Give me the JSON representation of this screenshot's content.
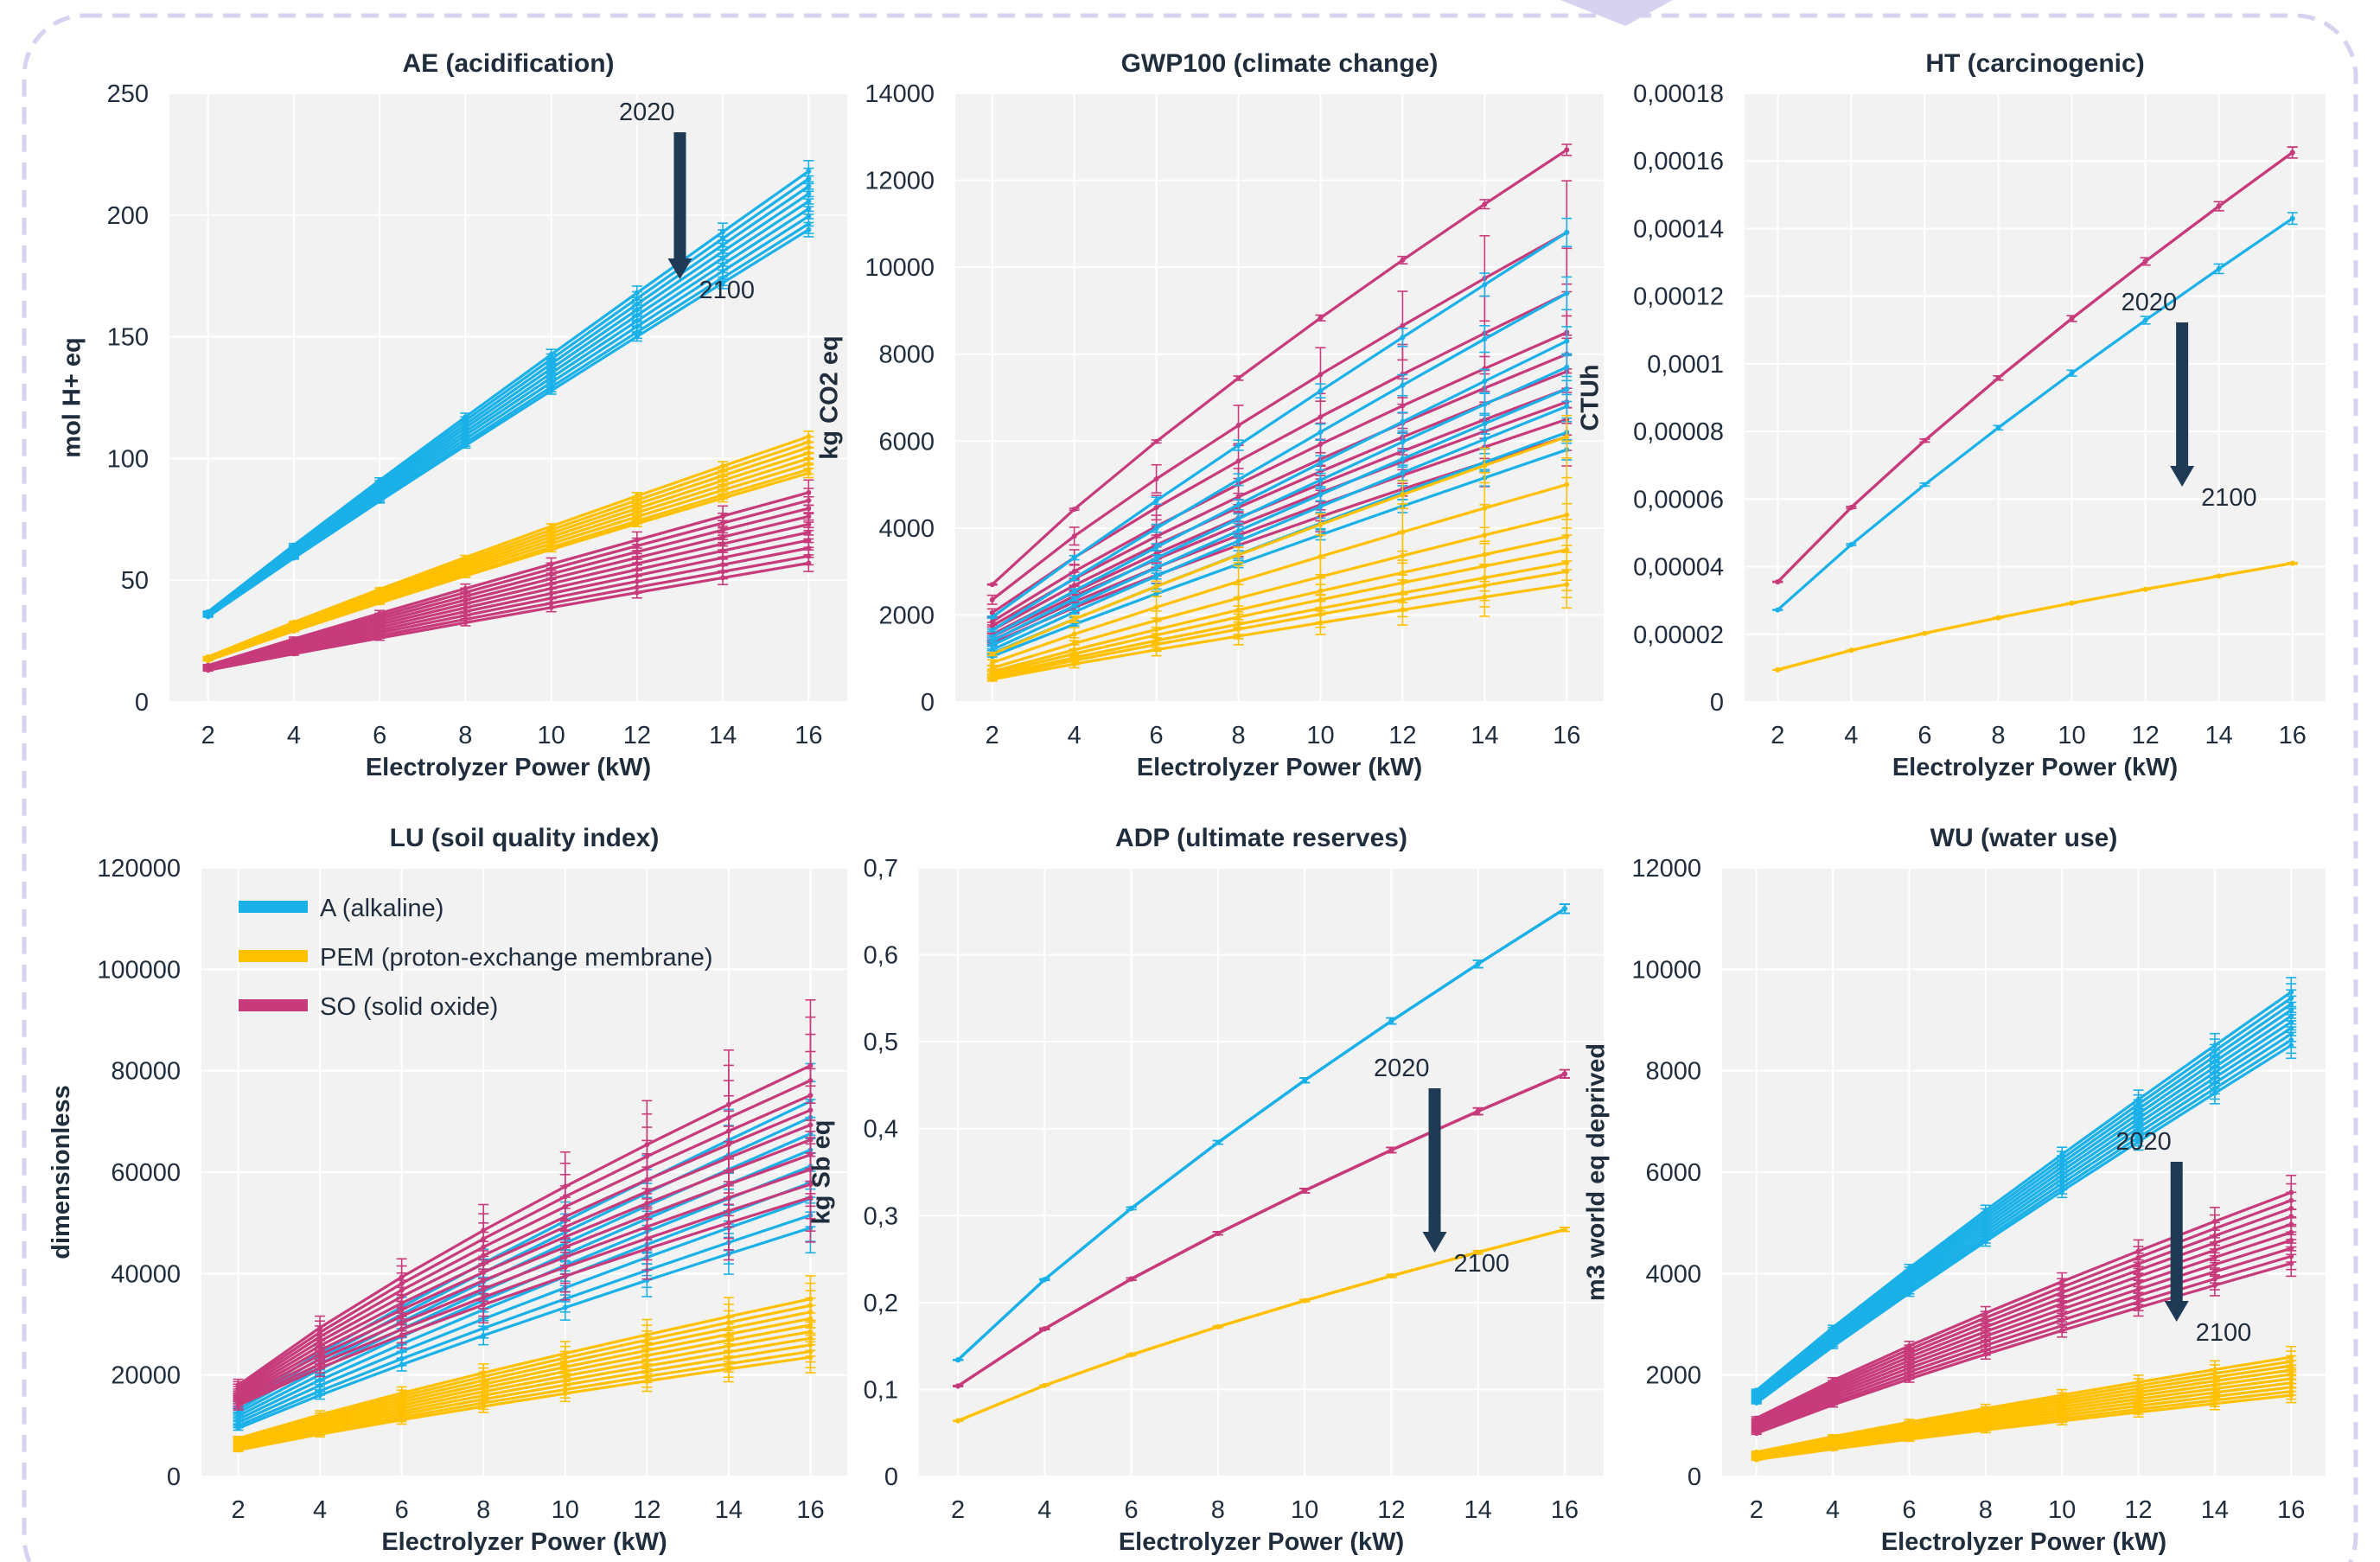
{
  "colors": {
    "A": "#1ab0e8",
    "PEM": "#ffc000",
    "SO": "#c73b7b",
    "plot_bg": "#f2f2f2",
    "grid": "#ffffff",
    "arrow": "#1f3a55",
    "frame": "#d6d2f0"
  },
  "legend": [
    {
      "key": "A",
      "label": "A (alkaline)"
    },
    {
      "key": "PEM",
      "label": "PEM (proton-exchange membrane)"
    },
    {
      "key": "SO",
      "label": "SO (solid oxide)"
    }
  ],
  "chart_data": [
    {
      "type": "line",
      "title": "AE (acidification)",
      "xlabel": "Electrolyzer Power (kW)",
      "ylabel": "mol H+ eq",
      "x": [
        2,
        4,
        6,
        8,
        10,
        12,
        14,
        16
      ],
      "xlim": [
        1.1,
        16.9
      ],
      "ylim": [
        0,
        250
      ],
      "yticks": [
        "0",
        "50",
        "100",
        "150",
        "200",
        "250"
      ],
      "annotation": {
        "top": "2020",
        "bottom": "2100",
        "x": 13
      },
      "series": [
        {
          "tech": "A",
          "start": 37,
          "end": 218,
          "count": 8,
          "err": 0.02,
          "exp": 0.94
        },
        {
          "tech": "A",
          "start": 35,
          "end": 194,
          "count": 1,
          "err": 0.015,
          "exp": 0.94
        },
        {
          "tech": "PEM",
          "start": 18.5,
          "end": 109,
          "count": 7,
          "err": 0.02,
          "exp": 0.9
        },
        {
          "tech": "PEM",
          "start": 17,
          "end": 94,
          "count": 1,
          "err": 0.02,
          "exp": 0.9
        },
        {
          "tech": "SO",
          "start": 15,
          "end": 86,
          "count": 9,
          "err": 0.06,
          "exp": 0.93
        },
        {
          "tech": "SO",
          "start": 13,
          "end": 57,
          "count": 1,
          "err": 0.06,
          "exp": 0.93
        }
      ]
    },
    {
      "type": "line",
      "title": "GWP100 (climate change)",
      "xlabel": "Electrolyzer Power (kW)",
      "ylabel": "kg CO2 eq",
      "x": [
        2,
        4,
        6,
        8,
        10,
        12,
        14,
        16
      ],
      "xlim": [
        1.1,
        16.9
      ],
      "ylim": [
        0,
        14000
      ],
      "yticks": [
        "0",
        "2000",
        "4000",
        "6000",
        "8000",
        "10000",
        "12000",
        "14000"
      ],
      "series": [
        {
          "tech": "SO",
          "start": 2700,
          "end": 12700,
          "count": 1,
          "err": 0.01,
          "exp": 0.8
        },
        {
          "tech": "SO",
          "start": 2350,
          "end": 10800,
          "count": 1,
          "err": 0.11,
          "exp": 0.8
        },
        {
          "tech": "SO",
          "start": 2050,
          "end": 9400,
          "count": 1,
          "err": 0.11,
          "exp": 0.8
        },
        {
          "tech": "SO",
          "start": 1850,
          "end": 8500,
          "count": 1,
          "err": 0.11,
          "exp": 0.8
        },
        {
          "tech": "SO",
          "start": 1750,
          "end": 8000,
          "count": 1,
          "err": 0.11,
          "exp": 0.8
        },
        {
          "tech": "SO",
          "start": 1650,
          "end": 7600,
          "count": 1,
          "err": 0.11,
          "exp": 0.8
        },
        {
          "tech": "SO",
          "start": 1550,
          "end": 7200,
          "count": 1,
          "err": 0.11,
          "exp": 0.8
        },
        {
          "tech": "SO",
          "start": 1500,
          "end": 6900,
          "count": 1,
          "err": 0.11,
          "exp": 0.8
        },
        {
          "tech": "SO",
          "start": 1420,
          "end": 6500,
          "count": 1,
          "err": 0.11,
          "exp": 0.8
        },
        {
          "tech": "SO",
          "start": 1350,
          "end": 6100,
          "count": 1,
          "err": 0.11,
          "exp": 0.8
        },
        {
          "tech": "A",
          "start": 1950,
          "end": 10800,
          "count": 1,
          "err": 0.03,
          "exp": 0.92
        },
        {
          "tech": "A",
          "start": 1650,
          "end": 9400,
          "count": 1,
          "err": 0.04,
          "exp": 0.92
        },
        {
          "tech": "A",
          "start": 1500,
          "end": 8300,
          "count": 1,
          "err": 0.04,
          "exp": 0.92
        },
        {
          "tech": "A",
          "start": 1400,
          "end": 7700,
          "count": 1,
          "err": 0.04,
          "exp": 0.92
        },
        {
          "tech": "A",
          "start": 1300,
          "end": 7200,
          "count": 1,
          "err": 0.04,
          "exp": 0.92
        },
        {
          "tech": "A",
          "start": 1200,
          "end": 6800,
          "count": 1,
          "err": 0.04,
          "exp": 0.92
        },
        {
          "tech": "A",
          "start": 1120,
          "end": 6200,
          "count": 1,
          "err": 0.04,
          "exp": 0.92
        },
        {
          "tech": "A",
          "start": 1050,
          "end": 5800,
          "count": 1,
          "err": 0.04,
          "exp": 0.92
        },
        {
          "tech": "PEM",
          "start": 1100,
          "end": 6100,
          "count": 1,
          "err": 0.08,
          "exp": 0.88
        },
        {
          "tech": "PEM",
          "start": 900,
          "end": 5000,
          "count": 1,
          "err": 0.2,
          "exp": 0.88
        },
        {
          "tech": "PEM",
          "start": 780,
          "end": 4300,
          "count": 1,
          "err": 0.2,
          "exp": 0.88
        },
        {
          "tech": "PEM",
          "start": 700,
          "end": 3800,
          "count": 1,
          "err": 0.2,
          "exp": 0.88
        },
        {
          "tech": "PEM",
          "start": 650,
          "end": 3500,
          "count": 1,
          "err": 0.2,
          "exp": 0.88
        },
        {
          "tech": "PEM",
          "start": 600,
          "end": 3200,
          "count": 1,
          "err": 0.2,
          "exp": 0.88
        },
        {
          "tech": "PEM",
          "start": 560,
          "end": 3000,
          "count": 1,
          "err": 0.2,
          "exp": 0.88
        },
        {
          "tech": "PEM",
          "start": 520,
          "end": 2700,
          "count": 1,
          "err": 0.2,
          "exp": 0.88
        }
      ]
    },
    {
      "type": "line",
      "title": "HT (carcinogenic)",
      "xlabel": "Electrolyzer Power (kW)",
      "ylabel": "CTUh",
      "x": [
        2,
        4,
        6,
        8,
        10,
        12,
        14,
        16
      ],
      "xlim": [
        1.1,
        16.9
      ],
      "ylim": [
        0,
        0.00018
      ],
      "yticks": [
        "0",
        "0,00002",
        "0,00004",
        "0,00006",
        "0,00008",
        "0,0001",
        "0,00012",
        "0,00014",
        "0,00016",
        "0,00018"
      ],
      "annotation": {
        "top": "2020",
        "bottom": "2100",
        "x": 13
      },
      "series": [
        {
          "tech": "SO",
          "start": 3.55e-05,
          "end": 0.0001625,
          "count": 2,
          "err": 0.01,
          "exp": 0.8
        },
        {
          "tech": "A",
          "start": 2.72e-05,
          "end": 0.000143,
          "count": 1,
          "err": 0.012,
          "exp": 0.84
        },
        {
          "tech": "PEM",
          "start": 9.5e-06,
          "end": 4.1e-05,
          "count": 2,
          "err": 0.005,
          "exp": 0.74
        }
      ]
    },
    {
      "type": "line",
      "title": "LU (soil quality index)",
      "xlabel": "Electrolyzer Power (kW)",
      "ylabel": "dimensionless",
      "x": [
        2,
        4,
        6,
        8,
        10,
        12,
        14,
        16
      ],
      "xlim": [
        1.1,
        16.9
      ],
      "ylim": [
        0,
        120000
      ],
      "yticks": [
        "0",
        "20000",
        "40000",
        "60000",
        "80000",
        "100000",
        "120000"
      ],
      "series": [
        {
          "tech": "A",
          "start": 14500,
          "end": 74000,
          "count": 8,
          "err": 0.1,
          "exp": 0.85
        },
        {
          "tech": "A",
          "start": 9500,
          "end": 49000,
          "count": 1,
          "err": 0.1,
          "exp": 0.85
        },
        {
          "tech": "SO",
          "start": 18000,
          "end": 81000,
          "count": 9,
          "err": 0.16,
          "exp": 0.76
        },
        {
          "tech": "SO",
          "start": 14000,
          "end": 55000,
          "count": 1,
          "err": 0.16,
          "exp": 0.76
        },
        {
          "tech": "PEM",
          "start": 7500,
          "end": 35000,
          "count": 9,
          "err": 0.13,
          "exp": 0.82
        },
        {
          "tech": "PEM",
          "start": 5200,
          "end": 23500,
          "count": 1,
          "err": 0.13,
          "exp": 0.82
        }
      ]
    },
    {
      "type": "line",
      "title": "ADP (ultimate reserves)",
      "xlabel": "Electrolyzer Power (kW)",
      "ylabel": "kg Sb eq",
      "x": [
        2,
        4,
        6,
        8,
        10,
        12,
        14,
        16
      ],
      "xlim": [
        1.1,
        16.9
      ],
      "ylim": [
        0,
        0.7
      ],
      "yticks": [
        "0",
        "0,1",
        "0,2",
        "0,3",
        "0,4",
        "0,5",
        "0,6",
        "0,7"
      ],
      "annotation": {
        "top": "2020",
        "bottom": "2100",
        "x": 13
      },
      "series": [
        {
          "tech": "A",
          "start": 0.134,
          "end": 0.653,
          "count": 4,
          "err": 0.008,
          "exp": 0.77
        },
        {
          "tech": "SO",
          "start": 0.104,
          "end": 0.463,
          "count": 5,
          "err": 0.01,
          "exp": 0.74
        },
        {
          "tech": "PEM",
          "start": 0.064,
          "end": 0.284,
          "count": 3,
          "err": 0.008,
          "exp": 0.73
        }
      ]
    },
    {
      "type": "line",
      "title": "WU (water use)",
      "xlabel": "Electrolyzer Power (kW)",
      "ylabel": "m3 world eq deprived",
      "x": [
        2,
        4,
        6,
        8,
        10,
        12,
        14,
        16
      ],
      "xlim": [
        1.1,
        16.9
      ],
      "ylim": [
        0,
        12000
      ],
      "yticks": [
        "0",
        "2000",
        "4000",
        "6000",
        "8000",
        "10000",
        "12000"
      ],
      "annotation": {
        "top": "2020",
        "bottom": "2100",
        "x": 13
      },
      "series": [
        {
          "tech": "A",
          "start": 1700,
          "end": 9550,
          "count": 9,
          "err": 0.03,
          "exp": 0.9
        },
        {
          "tech": "A",
          "start": 1450,
          "end": 8500,
          "count": 1,
          "err": 0.03,
          "exp": 0.9
        },
        {
          "tech": "SO",
          "start": 1150,
          "end": 5600,
          "count": 9,
          "err": 0.06,
          "exp": 0.84
        },
        {
          "tech": "SO",
          "start": 850,
          "end": 4200,
          "count": 1,
          "err": 0.06,
          "exp": 0.84
        },
        {
          "tech": "PEM",
          "start": 480,
          "end": 2350,
          "count": 9,
          "err": 0.09,
          "exp": 0.86
        },
        {
          "tech": "PEM",
          "start": 330,
          "end": 1600,
          "count": 1,
          "err": 0.09,
          "exp": 0.86
        }
      ]
    }
  ]
}
